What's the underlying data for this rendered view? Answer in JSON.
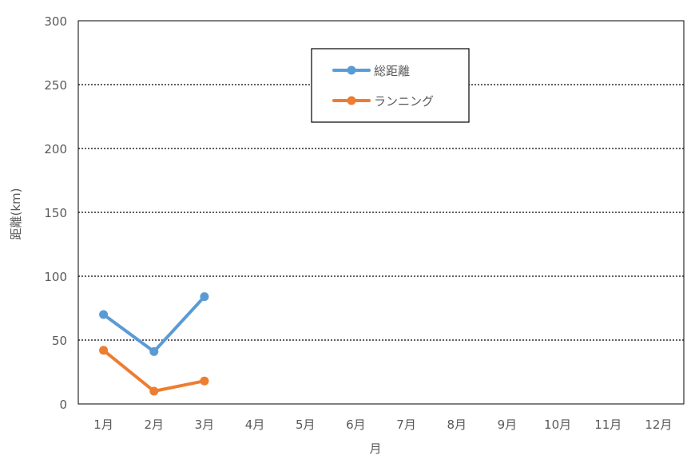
{
  "chart_data": {
    "type": "line",
    "categories": [
      "1月",
      "2月",
      "3月",
      "4月",
      "5月",
      "6月",
      "7月",
      "8月",
      "9月",
      "10月",
      "11月",
      "12月"
    ],
    "series": [
      {
        "name": "総距離",
        "color": "#5B9BD5",
        "values": [
          70,
          41,
          84,
          null,
          null,
          null,
          null,
          null,
          null,
          null,
          null,
          null
        ]
      },
      {
        "name": "ランニング",
        "color": "#ED7D31",
        "values": [
          42,
          10,
          18,
          null,
          null,
          null,
          null,
          null,
          null,
          null,
          null,
          null
        ]
      }
    ],
    "xlabel": "月",
    "ylabel": "距離(km)",
    "ylim": [
      0,
      300
    ],
    "yticks": [
      0,
      50,
      100,
      150,
      200,
      250,
      300
    ],
    "grid": "horizontal-dotted",
    "legend_position": "top-center"
  }
}
